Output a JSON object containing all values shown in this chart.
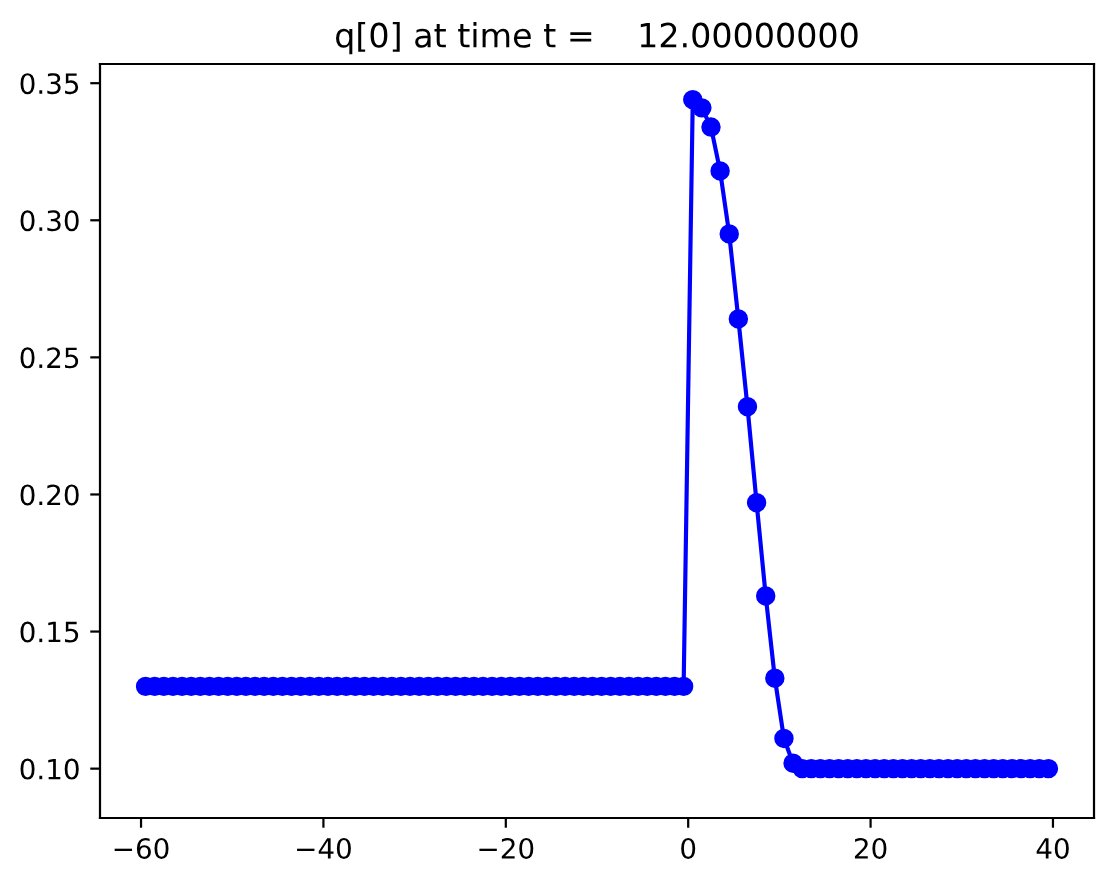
{
  "chart_data": {
    "type": "line",
    "title": "q[0] at time t =    12.00000000",
    "x": [
      -59.5,
      -58.5,
      -57.5,
      -56.5,
      -55.5,
      -54.5,
      -53.5,
      -52.5,
      -51.5,
      -50.5,
      -49.5,
      -48.5,
      -47.5,
      -46.5,
      -45.5,
      -44.5,
      -43.5,
      -42.5,
      -41.5,
      -40.5,
      -39.5,
      -38.5,
      -37.5,
      -36.5,
      -35.5,
      -34.5,
      -33.5,
      -32.5,
      -31.5,
      -30.5,
      -29.5,
      -28.5,
      -27.5,
      -26.5,
      -25.5,
      -24.5,
      -23.5,
      -22.5,
      -21.5,
      -20.5,
      -19.5,
      -18.5,
      -17.5,
      -16.5,
      -15.5,
      -14.5,
      -13.5,
      -12.5,
      -11.5,
      -10.5,
      -9.5,
      -8.5,
      -7.5,
      -6.5,
      -5.5,
      -4.5,
      -3.5,
      -2.5,
      -1.5,
      -0.5,
      0.5,
      1.5,
      2.5,
      3.5,
      4.5,
      5.5,
      6.5,
      7.5,
      8.5,
      9.5,
      10.5,
      11.5,
      12.5,
      13.5,
      14.5,
      15.5,
      16.5,
      17.5,
      18.5,
      19.5,
      20.5,
      21.5,
      22.5,
      23.5,
      24.5,
      25.5,
      26.5,
      27.5,
      28.5,
      29.5,
      30.5,
      31.5,
      32.5,
      33.5,
      34.5,
      35.5,
      36.5,
      37.5,
      38.5,
      39.5
    ],
    "series": [
      {
        "color": "#0000ff",
        "values": [
          0.13,
          0.13,
          0.13,
          0.13,
          0.13,
          0.13,
          0.13,
          0.13,
          0.13,
          0.13,
          0.13,
          0.13,
          0.13,
          0.13,
          0.13,
          0.13,
          0.13,
          0.13,
          0.13,
          0.13,
          0.13,
          0.13,
          0.13,
          0.13,
          0.13,
          0.13,
          0.13,
          0.13,
          0.13,
          0.13,
          0.13,
          0.13,
          0.13,
          0.13,
          0.13,
          0.13,
          0.13,
          0.13,
          0.13,
          0.13,
          0.13,
          0.13,
          0.13,
          0.13,
          0.13,
          0.13,
          0.13,
          0.13,
          0.13,
          0.13,
          0.13,
          0.13,
          0.13,
          0.13,
          0.13,
          0.13,
          0.13,
          0.13,
          0.13,
          0.13,
          0.344,
          0.341,
          0.334,
          0.318,
          0.295,
          0.264,
          0.232,
          0.197,
          0.163,
          0.133,
          0.111,
          0.102,
          0.1,
          0.1,
          0.1,
          0.1,
          0.1,
          0.1,
          0.1,
          0.1,
          0.1,
          0.1,
          0.1,
          0.1,
          0.1,
          0.1,
          0.1,
          0.1,
          0.1,
          0.1,
          0.1,
          0.1,
          0.1,
          0.1,
          0.1,
          0.1,
          0.1,
          0.1,
          0.1,
          0.1
        ]
      }
    ],
    "marker": "circle",
    "line_style": "solid",
    "grid": false,
    "xlim": [
      -64.5,
      44.5
    ],
    "ylim": [
      0.082,
      0.357
    ],
    "xticks": [
      {
        "value": -60,
        "label": "−60"
      },
      {
        "value": -40,
        "label": "−40"
      },
      {
        "value": -20,
        "label": "−20"
      },
      0,
      20,
      40
    ],
    "yticks": [
      {
        "value": 0.1,
        "label": "0.10"
      },
      0.15,
      {
        "value": 0.2,
        "label": "0.20"
      },
      0.25,
      {
        "value": 0.3,
        "label": "0.30"
      },
      0.35
    ]
  }
}
